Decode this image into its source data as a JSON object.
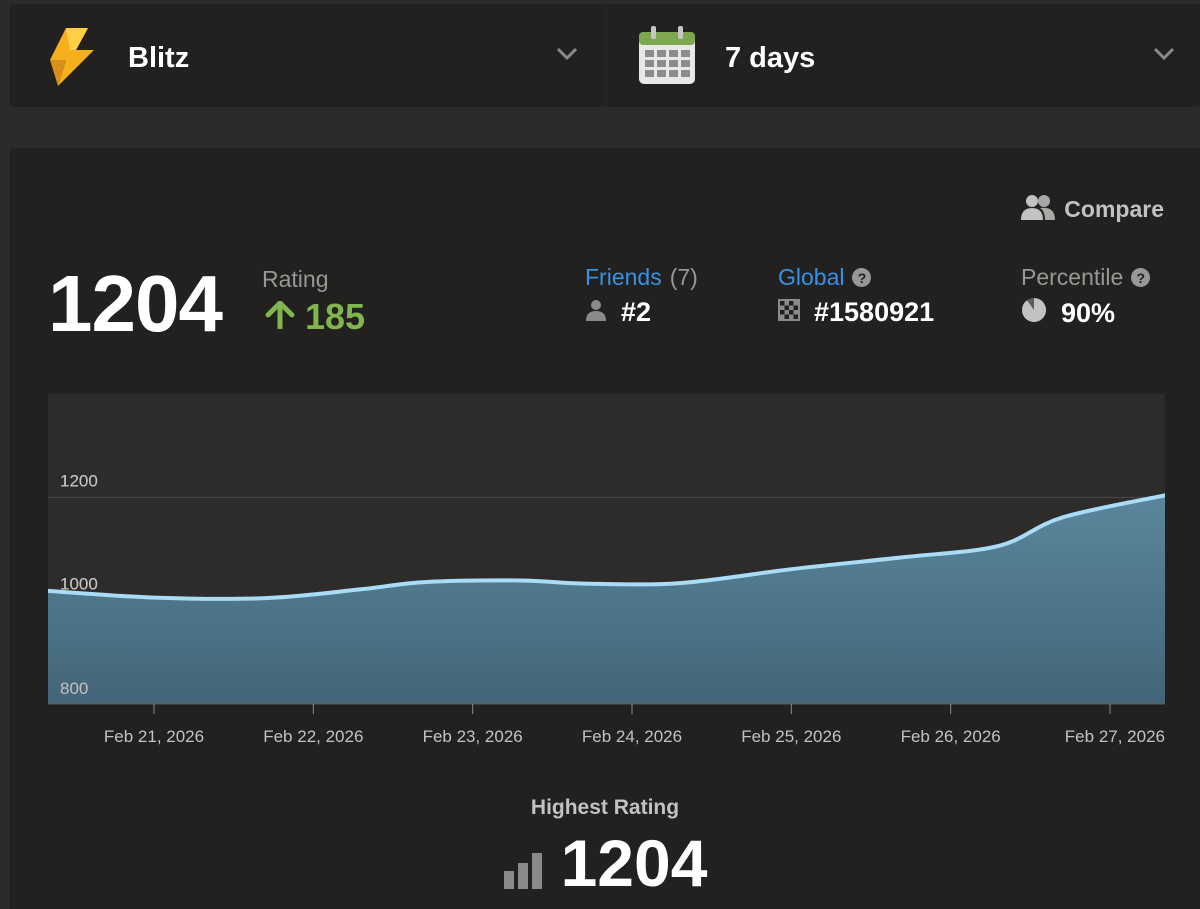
{
  "variant_selector": {
    "label": "Blitz",
    "icon": "lightning-icon"
  },
  "period_selector": {
    "label": "7 days",
    "icon": "calendar-icon"
  },
  "compare": {
    "label": "Compare"
  },
  "rating": {
    "value": "1204",
    "label": "Rating",
    "change": "185"
  },
  "friends": {
    "label": "Friends",
    "count": "(7)",
    "rank": "#2"
  },
  "global": {
    "label": "Global",
    "rank": "#1580921"
  },
  "percentile": {
    "label": "Percentile",
    "value": "90%",
    "fill_fraction": 0.9
  },
  "highest": {
    "label": "Highest Rating",
    "value": "1204"
  },
  "colors": {
    "accent_blue": "#3692e7",
    "positive_green": "#81b64c",
    "line": "#a9dcf6",
    "area": "#4f7b92"
  },
  "chart_data": {
    "type": "area",
    "x_ticks": [
      "Feb 21, 2026",
      "Feb 22, 2026",
      "Feb 23, 2026",
      "Feb 24, 2026",
      "Feb 25, 2026",
      "Feb 26, 2026",
      "Feb 27, 2026"
    ],
    "y_ticks": [
      800,
      1000,
      1200
    ],
    "ylim": [
      800,
      1400
    ],
    "xlim": [
      "Feb 20, 2026",
      "Feb 27, 2026"
    ],
    "points": [
      {
        "x": "Feb 20, 2026",
        "y": 1019
      },
      {
        "x": "Feb 21, 2026",
        "y": 1006
      },
      {
        "x": "Feb 22, 2026",
        "y": 1005
      },
      {
        "x": "Feb 22, 2026",
        "y": 1022
      },
      {
        "x": "Feb 23, 2026",
        "y": 1036
      },
      {
        "x": "Feb 23, 2026",
        "y": 1039
      },
      {
        "x": "Feb 24, 2026",
        "y": 1033
      },
      {
        "x": "Feb 24, 2026",
        "y": 1034
      },
      {
        "x": "Feb 25, 2026",
        "y": 1061
      },
      {
        "x": "Feb 26, 2026",
        "y": 1084
      },
      {
        "x": "Feb 26, 2026",
        "y": 1106
      },
      {
        "x": "Feb 27, 2026",
        "y": 1161
      },
      {
        "x": "Feb 27, 2026",
        "y": 1204
      }
    ],
    "grid": true,
    "legend": "none"
  }
}
